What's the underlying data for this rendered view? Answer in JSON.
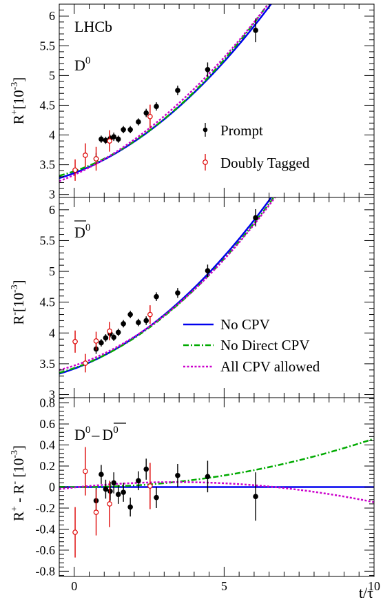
{
  "figure": {
    "experiment_label": "LHCb",
    "xlabel": "t/τ"
  },
  "chart_data": [
    {
      "type": "scatter",
      "panel": "top",
      "panel_label": "D0",
      "label_main": "D",
      "label_sup": "0",
      "label_bar": false,
      "ylabel_main": "R",
      "ylabel_sup": "+",
      "ylabel_tail": "[10",
      "ylabel_tail_sup": "-3",
      "ylabel_close": "]",
      "xlim": [
        -0.5,
        10
      ],
      "ylim": [
        2.95,
        6.2
      ],
      "yticks": [
        "3",
        "3.5",
        "4",
        "4.5",
        "5",
        "5.5",
        "6"
      ],
      "legend_placement": "right",
      "legend": [
        {
          "key": "prompt",
          "label": "Prompt"
        },
        {
          "key": "tagged",
          "label": "Doubly Tagged"
        }
      ],
      "series": [
        {
          "key": "prompt",
          "name": "Prompt",
          "marker": "filled-circle",
          "color": "#000000",
          "points": [
            [
              0.73,
              3.6,
              0.1
            ],
            [
              0.9,
              3.93,
              0.06
            ],
            [
              1.05,
              3.91,
              0.06
            ],
            [
              1.2,
              3.94,
              0.06
            ],
            [
              1.32,
              3.97,
              0.07
            ],
            [
              1.47,
              3.93,
              0.06
            ],
            [
              1.64,
              4.09,
              0.06
            ],
            [
              1.87,
              4.09,
              0.06
            ],
            [
              2.14,
              4.22,
              0.06
            ],
            [
              2.4,
              4.37,
              0.07
            ],
            [
              2.74,
              4.48,
              0.07
            ],
            [
              3.45,
              4.75,
              0.08
            ],
            [
              4.45,
              5.1,
              0.12
            ],
            [
              6.05,
              5.76,
              0.2
            ]
          ]
        },
        {
          "key": "tagged",
          "name": "Doubly Tagged",
          "marker": "open-circle",
          "color": "#dd0000",
          "points": [
            [
              0.03,
              3.41,
              0.18
            ],
            [
              0.37,
              3.66,
              0.2
            ],
            [
              0.73,
              3.6,
              0.2
            ],
            [
              1.18,
              3.9,
              0.18
            ],
            [
              2.53,
              4.31,
              0.2
            ]
          ]
        }
      ],
      "curves": [
        {
          "key": "nocpv",
          "name": "No CPV",
          "color": "#0000ee",
          "style": "solid",
          "y0": 3.36,
          "b": 0.19,
          "c": 0.037
        },
        {
          "key": "nodirect",
          "name": "No Direct CPV",
          "color": "#00aa00",
          "style": "dashdot",
          "y0": 3.39,
          "b": 0.17,
          "c": 0.041
        },
        {
          "key": "allcpv",
          "name": "All CPV allowed",
          "color": "#cc00cc",
          "style": "dotted",
          "y0": 3.33,
          "b": 0.23,
          "c": 0.033
        }
      ]
    },
    {
      "type": "scatter",
      "panel": "middle",
      "panel_label": "D0bar",
      "label_main": "D",
      "label_sup": "0",
      "label_bar": true,
      "ylabel_main": "R",
      "ylabel_sup": "-",
      "ylabel_tail": "[10",
      "ylabel_tail_sup": "-3",
      "ylabel_close": "]",
      "xlim": [
        -0.5,
        10
      ],
      "ylim": [
        2.95,
        6.2
      ],
      "yticks": [
        "3",
        "3.5",
        "4",
        "4.5",
        "5",
        "5.5",
        "6"
      ],
      "legend_placement": "bottom-right",
      "legend": [
        {
          "key": "nocpv",
          "label": "No CPV"
        },
        {
          "key": "nodirect",
          "label": "No Direct CPV"
        },
        {
          "key": "allcpv",
          "label": "All CPV allowed"
        }
      ],
      "series": [
        {
          "key": "prompt",
          "name": "Prompt",
          "marker": "filled-circle",
          "color": "#000000",
          "points": [
            [
              0.73,
              3.74,
              0.08
            ],
            [
              0.9,
              3.84,
              0.06
            ],
            [
              1.05,
              3.92,
              0.06
            ],
            [
              1.2,
              3.99,
              0.06
            ],
            [
              1.32,
              3.93,
              0.06
            ],
            [
              1.47,
              4.01,
              0.06
            ],
            [
              1.64,
              4.15,
              0.06
            ],
            [
              1.87,
              4.3,
              0.06
            ],
            [
              2.14,
              4.17,
              0.06
            ],
            [
              2.4,
              4.2,
              0.07
            ],
            [
              2.74,
              4.59,
              0.07
            ],
            [
              3.45,
              4.65,
              0.08
            ],
            [
              4.45,
              5.01,
              0.1
            ],
            [
              6.05,
              5.87,
              0.14
            ]
          ]
        },
        {
          "key": "tagged",
          "name": "Doubly Tagged",
          "marker": "open-circle",
          "color": "#dd0000",
          "points": [
            [
              0.03,
              3.86,
              0.18
            ],
            [
              0.37,
              3.51,
              0.15
            ],
            [
              0.73,
              3.87,
              0.15
            ],
            [
              1.18,
              4.03,
              0.15
            ],
            [
              2.53,
              4.3,
              0.15
            ]
          ]
        }
      ],
      "curves": [
        {
          "key": "nocpv",
          "name": "No CPV",
          "color": "#0000ee",
          "style": "solid",
          "y0": 3.42,
          "b": 0.18,
          "c": 0.037
        },
        {
          "key": "nodirect",
          "name": "No Direct CPV",
          "color": "#00aa00",
          "style": "dashdot",
          "y0": 3.43,
          "b": 0.17,
          "c": 0.037
        },
        {
          "key": "allcpv",
          "name": "All CPV allowed",
          "color": "#cc00cc",
          "style": "dotted",
          "y0": 3.47,
          "b": 0.16,
          "c": 0.037
        }
      ]
    },
    {
      "type": "scatter",
      "panel": "bottom",
      "panel_label": "D0 - D0bar",
      "label_main": "D",
      "label_sup": "0",
      "label_dash": "–",
      "label2_main": "D",
      "label2_sup": "0",
      "ylabel_main": "R",
      "ylabel_sup": "+",
      "ylabel_mid": " - R",
      "ylabel_sup2": "-",
      "ylabel_tail": " [10",
      "ylabel_tail_sup": "-3",
      "ylabel_close": "]",
      "xlim": [
        -0.5,
        10
      ],
      "ylim": [
        -0.85,
        0.85
      ],
      "yticks": [
        "-0.8",
        "-0.6",
        "-0.4",
        "-0.2",
        "0",
        "0.2",
        "0.4",
        "0.6",
        "0.8"
      ],
      "xticks": [
        "0",
        "5",
        "10"
      ],
      "series": [
        {
          "key": "prompt",
          "name": "Prompt",
          "marker": "filled-circle",
          "color": "#000000",
          "points": [
            [
              0.73,
              -0.13,
              0.12
            ],
            [
              0.9,
              0.12,
              0.09
            ],
            [
              1.05,
              -0.02,
              0.09
            ],
            [
              1.2,
              -0.04,
              0.09
            ],
            [
              1.32,
              0.04,
              0.1
            ],
            [
              1.47,
              -0.07,
              0.09
            ],
            [
              1.64,
              -0.05,
              0.09
            ],
            [
              1.87,
              -0.19,
              0.09
            ],
            [
              2.14,
              0.06,
              0.09
            ],
            [
              2.4,
              0.17,
              0.1
            ],
            [
              2.74,
              -0.1,
              0.1
            ],
            [
              3.45,
              0.11,
              0.11
            ],
            [
              4.45,
              0.1,
              0.15
            ],
            [
              6.05,
              -0.09,
              0.23
            ]
          ]
        },
        {
          "key": "tagged",
          "name": "Doubly Tagged",
          "marker": "open-circle",
          "color": "#dd0000",
          "points": [
            [
              0.03,
              -0.43,
              0.24
            ],
            [
              0.37,
              0.15,
              0.23
            ],
            [
              0.73,
              -0.24,
              0.22
            ],
            [
              1.18,
              -0.16,
              0.22
            ],
            [
              2.53,
              0.01,
              0.22
            ]
          ]
        }
      ],
      "curves": [
        {
          "key": "nocpv",
          "name": "No CPV",
          "color": "#0000ee",
          "style": "solid",
          "y0": 0,
          "b": 0,
          "c": 0
        },
        {
          "key": "nodirect",
          "name": "No Direct CPV",
          "color": "#00aa00",
          "style": "dashdot",
          "y0": 0,
          "b": -0.002,
          "c": 0.0048
        },
        {
          "key": "allcpv",
          "name": "All CPV allowed",
          "color": "#cc00cc",
          "style": "dotted",
          "y0": -0.004,
          "b": 0.03,
          "c": -0.0044
        }
      ]
    }
  ]
}
